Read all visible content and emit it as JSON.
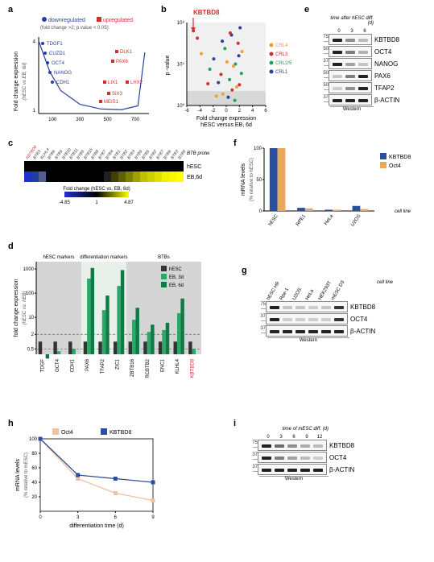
{
  "panels": {
    "a": {
      "label": "a",
      "legend": {
        "down": "downregulated",
        "up": "upregulated",
        "criteria": "(fold change >2; p value < 0.05)"
      },
      "ylabel": "Fold change expression",
      "ylabel2": "(hESC vs EB, 6d)",
      "xticks": [
        "100",
        "300",
        "500",
        "700"
      ],
      "yticks": [
        "1",
        "4"
      ],
      "down_color": "#2b3fa0",
      "up_color": "#d22e2e",
      "down_genes": [
        "TDGF1",
        "CUZD1",
        "OCT4",
        "NANOG",
        "CDH1"
      ],
      "up_genes": [
        "DLK1",
        "PAX6",
        "LIX1",
        "LHX2",
        "SIX3",
        "MEIS1"
      ],
      "curve_points": [
        [
          0,
          0.95
        ],
        [
          80,
          0.55
        ],
        [
          160,
          0.3
        ],
        [
          300,
          0.12
        ],
        [
          450,
          0.06
        ],
        [
          600,
          0.05
        ],
        [
          720,
          0.1
        ],
        [
          770,
          0.8
        ]
      ]
    },
    "b": {
      "label": "b",
      "title": "KBTBD8",
      "title_color": "#d22e2e",
      "ylabel": "p -value",
      "xlabel": "Fold change expression",
      "xlabel2": "hESC versus EB, 6d",
      "xticks": [
        "-6",
        "-4",
        "-2",
        "0",
        "2",
        "4",
        "6"
      ],
      "yticks": [
        "10⁰",
        "10⁴",
        "10⁸"
      ],
      "legend_items": [
        {
          "label": "CRL4",
          "color": "#f0a030"
        },
        {
          "label": "CRL3",
          "color": "#d22e2e"
        },
        {
          "label": "CRL2/5",
          "color": "#20a060"
        },
        {
          "label": "CRL1",
          "color": "#2b3fa0"
        }
      ],
      "sig_band_color": "#e8e8e8",
      "points": [
        {
          "x": -5.0,
          "y": 7.2,
          "c": "#d22e2e"
        },
        {
          "x": -4.4,
          "y": 6.5,
          "c": "#d22e2e"
        },
        {
          "x": -3.8,
          "y": 5.0,
          "c": "#f0a030"
        },
        {
          "x": -2.5,
          "y": 3.5,
          "c": "#20a060"
        },
        {
          "x": -1.2,
          "y": 2.2,
          "c": "#2b3fa0"
        },
        {
          "x": -0.5,
          "y": 1.1,
          "c": "#f0a030"
        },
        {
          "x": 0.3,
          "y": 0.8,
          "c": "#2b3fa0"
        },
        {
          "x": 0.9,
          "y": 1.5,
          "c": "#d22e2e"
        },
        {
          "x": 1.4,
          "y": 4.0,
          "c": "#20a060"
        },
        {
          "x": 1.8,
          "y": 6.0,
          "c": "#d22e2e"
        },
        {
          "x": 2.1,
          "y": 7.5,
          "c": "#2b3fa0"
        },
        {
          "x": 2.4,
          "y": 5.2,
          "c": "#f0a030"
        },
        {
          "x": -0.8,
          "y": 3.0,
          "c": "#d22e2e"
        },
        {
          "x": 0.5,
          "y": 2.5,
          "c": "#20a060"
        },
        {
          "x": 1.1,
          "y": 3.8,
          "c": "#f0a030"
        },
        {
          "x": -1.9,
          "y": 4.5,
          "c": "#2b3fa0"
        },
        {
          "x": 2.0,
          "y": 2.0,
          "c": "#d22e2e"
        },
        {
          "x": -0.2,
          "y": 5.5,
          "c": "#20a060"
        },
        {
          "x": 0.8,
          "y": 6.8,
          "c": "#2b3fa0"
        },
        {
          "x": 1.6,
          "y": 1.8,
          "c": "#f0a030"
        },
        {
          "x": -2.8,
          "y": 2.1,
          "c": "#d22e2e"
        },
        {
          "x": 0.1,
          "y": 4.2,
          "c": "#f0a030"
        },
        {
          "x": 1.3,
          "y": 0.5,
          "c": "#20a060"
        },
        {
          "x": -0.6,
          "y": 6.2,
          "c": "#2b3fa0"
        },
        {
          "x": 2.3,
          "y": 3.1,
          "c": "#20a060"
        },
        {
          "x": -1.5,
          "y": 0.9,
          "c": "#f0a030"
        },
        {
          "x": 0.6,
          "y": 7.0,
          "c": "#d22e2e"
        },
        {
          "x": 1.9,
          "y": 4.8,
          "c": "#2b3fa0"
        }
      ]
    },
    "c": {
      "label": "c",
      "btb_label": "BTB protein",
      "rows": [
        "hESC",
        "EB,6d"
      ],
      "scale_label": "Fold change (hESC vs. EB, 6d)",
      "scale_min": -4.85,
      "scale_mid": 1,
      "scale_max": 4.87,
      "genes": [
        "KBTBD8",
        "BTB3",
        "KLHL4",
        "BTB6",
        "BTB9",
        "BTB10",
        "BTB11",
        "BTB5",
        "BTB15",
        "BTB8",
        "BTB7",
        "BTB4",
        "BTB1",
        "BTB2",
        "BTB3",
        "BTB9",
        "BTB5",
        "BTB2",
        "BTB7",
        "BTB6",
        "BTB3",
        "BTB9"
      ],
      "hesc_colors": [
        "#000000",
        "#000000",
        "#000000",
        "#000000",
        "#000000",
        "#000000",
        "#000000",
        "#000000",
        "#000000",
        "#000000",
        "#000000",
        "#000000",
        "#000000",
        "#000000",
        "#000000",
        "#000000",
        "#000000",
        "#000000",
        "#000000",
        "#000000",
        "#000000",
        "#000000"
      ],
      "eb_colors": [
        "#2030d0",
        "#2040a0",
        "#506090",
        "#000000",
        "#000000",
        "#000000",
        "#000000",
        "#000000",
        "#000000",
        "#000000",
        "#000000",
        "#202020",
        "#404000",
        "#606000",
        "#808000",
        "#a0a000",
        "#c0c000",
        "#d0d000",
        "#e0e000",
        "#f0f000",
        "#f8f800",
        "#ffff00"
      ]
    },
    "d": {
      "label": "d",
      "ylabel": "fold change expression",
      "ylabel2": "(hESC vs. hEB)",
      "yticks": [
        "0.5",
        "2",
        "10",
        "100",
        "1000"
      ],
      "groups": [
        "hESC markers",
        "differentiation markers",
        "BTBs"
      ],
      "group_bg": [
        "#d5d5d5",
        "#e9f0e9",
        "#d5d5d5"
      ],
      "series": [
        {
          "label": "hESC",
          "color": "#333333"
        },
        {
          "label": "EB, 3d",
          "color": "#2aa86a"
        },
        {
          "label": "EB, 6d",
          "color": "#0f7a45"
        }
      ],
      "genes": [
        "TDGF",
        "OCT4",
        "CDH1",
        "PAX6",
        "TFAP2",
        "ZIC1",
        "ZBTB16",
        "RCBTB2",
        "ENC1",
        "KLHL4",
        "KBTBD8"
      ],
      "last_gene_color": "#d22e2e",
      "values": {
        "TDGF": [
          1,
          0.3,
          0.2
        ],
        "OCT4": [
          1,
          0.4,
          0.3
        ],
        "CDH1": [
          1,
          0.5,
          0.3
        ],
        "PAX6": [
          1,
          400,
          1100
        ],
        "TFAP2": [
          1,
          20,
          80
        ],
        "ZIC1": [
          1,
          200,
          900
        ],
        "ZBTB16": [
          1,
          8,
          25
        ],
        "RCBTB2": [
          1,
          2.5,
          5
        ],
        "ENC1": [
          1,
          3,
          6
        ],
        "KLHL4": [
          1,
          15,
          60
        ],
        "KBTBD8": [
          1,
          0.5,
          0.3
        ]
      }
    },
    "e": {
      "label": "e",
      "header": "time after hESC diff. (d)",
      "times": [
        "0",
        "3",
        "6"
      ],
      "rows": [
        {
          "mw": "75",
          "label": "KBTBD8",
          "bands": [
            1.0,
            0.4,
            0.15
          ]
        },
        {
          "mw": "50",
          "label": "OCT4",
          "bands": [
            1.0,
            0.5,
            0.2
          ]
        },
        {
          "mw": "37",
          "label": "NANOG",
          "bands": [
            1.0,
            0.3,
            0.1
          ]
        },
        {
          "mw": "50",
          "label": "PAX6",
          "bands": [
            0.1,
            0.5,
            1.0
          ]
        },
        {
          "mw": "50",
          "label": "TFAP2",
          "bands": [
            0.05,
            0.4,
            1.0
          ]
        },
        {
          "mw": "37",
          "label": "β-ACTIN",
          "bands": [
            1.0,
            1.0,
            1.0
          ]
        }
      ],
      "caption": "Western"
    },
    "f": {
      "label": "f",
      "ylabel": "mRNA levels",
      "ylabel2": "(% relative to hESC)",
      "xlabel": "cell line",
      "yticks": [
        "0",
        "50",
        "100"
      ],
      "series": [
        {
          "label": "KBTBD8",
          "color": "#2b4f9e"
        },
        {
          "label": "Oct4",
          "color": "#e8a85a"
        }
      ],
      "categories": [
        "hESC",
        "RPE1",
        "HeLa",
        "U2OS"
      ],
      "values": {
        "hESC": [
          100,
          100
        ],
        "RPE1": [
          5,
          4
        ],
        "HeLa": [
          2,
          2
        ],
        "U2OS": [
          8,
          3
        ]
      }
    },
    "g": {
      "label": "g",
      "lanes": [
        "hESC H9",
        "Rpe-1",
        "U2OS",
        "HeLa",
        "HEK293T",
        "mESC D3"
      ],
      "xlabel": "cell line",
      "rows": [
        {
          "mw": "75",
          "label": "KBTBD8",
          "bands": [
            1.0,
            0.1,
            0.1,
            0.05,
            0.1,
            0.9
          ]
        },
        {
          "mw": "37",
          "label": "OCT4",
          "bands": [
            1.0,
            0.05,
            0.05,
            0.05,
            0.05,
            0.9
          ]
        },
        {
          "mw": "37",
          "label": "β-ACTIN",
          "bands": [
            1.0,
            1.0,
            1.0,
            1.0,
            1.0,
            1.0
          ]
        }
      ],
      "caption": "Western"
    },
    "h": {
      "label": "h",
      "ylabel": "mRNA levels",
      "ylabel2": "(% relative to mESC)",
      "xlabel": "differentiation time (d)",
      "xticks": [
        "0",
        "3",
        "6",
        "9"
      ],
      "yticks": [
        "20",
        "40",
        "60",
        "80",
        "100"
      ],
      "series": [
        {
          "label": "Oct4",
          "color": "#f0c0a0"
        },
        {
          "label": "KBTBD8",
          "color": "#2b4f9e"
        }
      ],
      "oct4": [
        100,
        45,
        25,
        15
      ],
      "kbtbd8": [
        100,
        50,
        45,
        40
      ]
    },
    "i": {
      "label": "i",
      "header": "time of mESC diff. (d)",
      "times": [
        "0",
        "3",
        "6",
        "9",
        "12"
      ],
      "rows": [
        {
          "mw": "75",
          "label": "KBTBD8",
          "bands": [
            1.0,
            0.6,
            0.4,
            0.25,
            0.15
          ]
        },
        {
          "mw": "37",
          "label": "OCT4",
          "bands": [
            1.0,
            0.5,
            0.3,
            0.15,
            0.05
          ]
        },
        {
          "mw": "37",
          "label": "β-ACTIN",
          "bands": [
            1.0,
            1.0,
            1.0,
            1.0,
            1.0
          ]
        }
      ],
      "caption": "Western"
    }
  }
}
